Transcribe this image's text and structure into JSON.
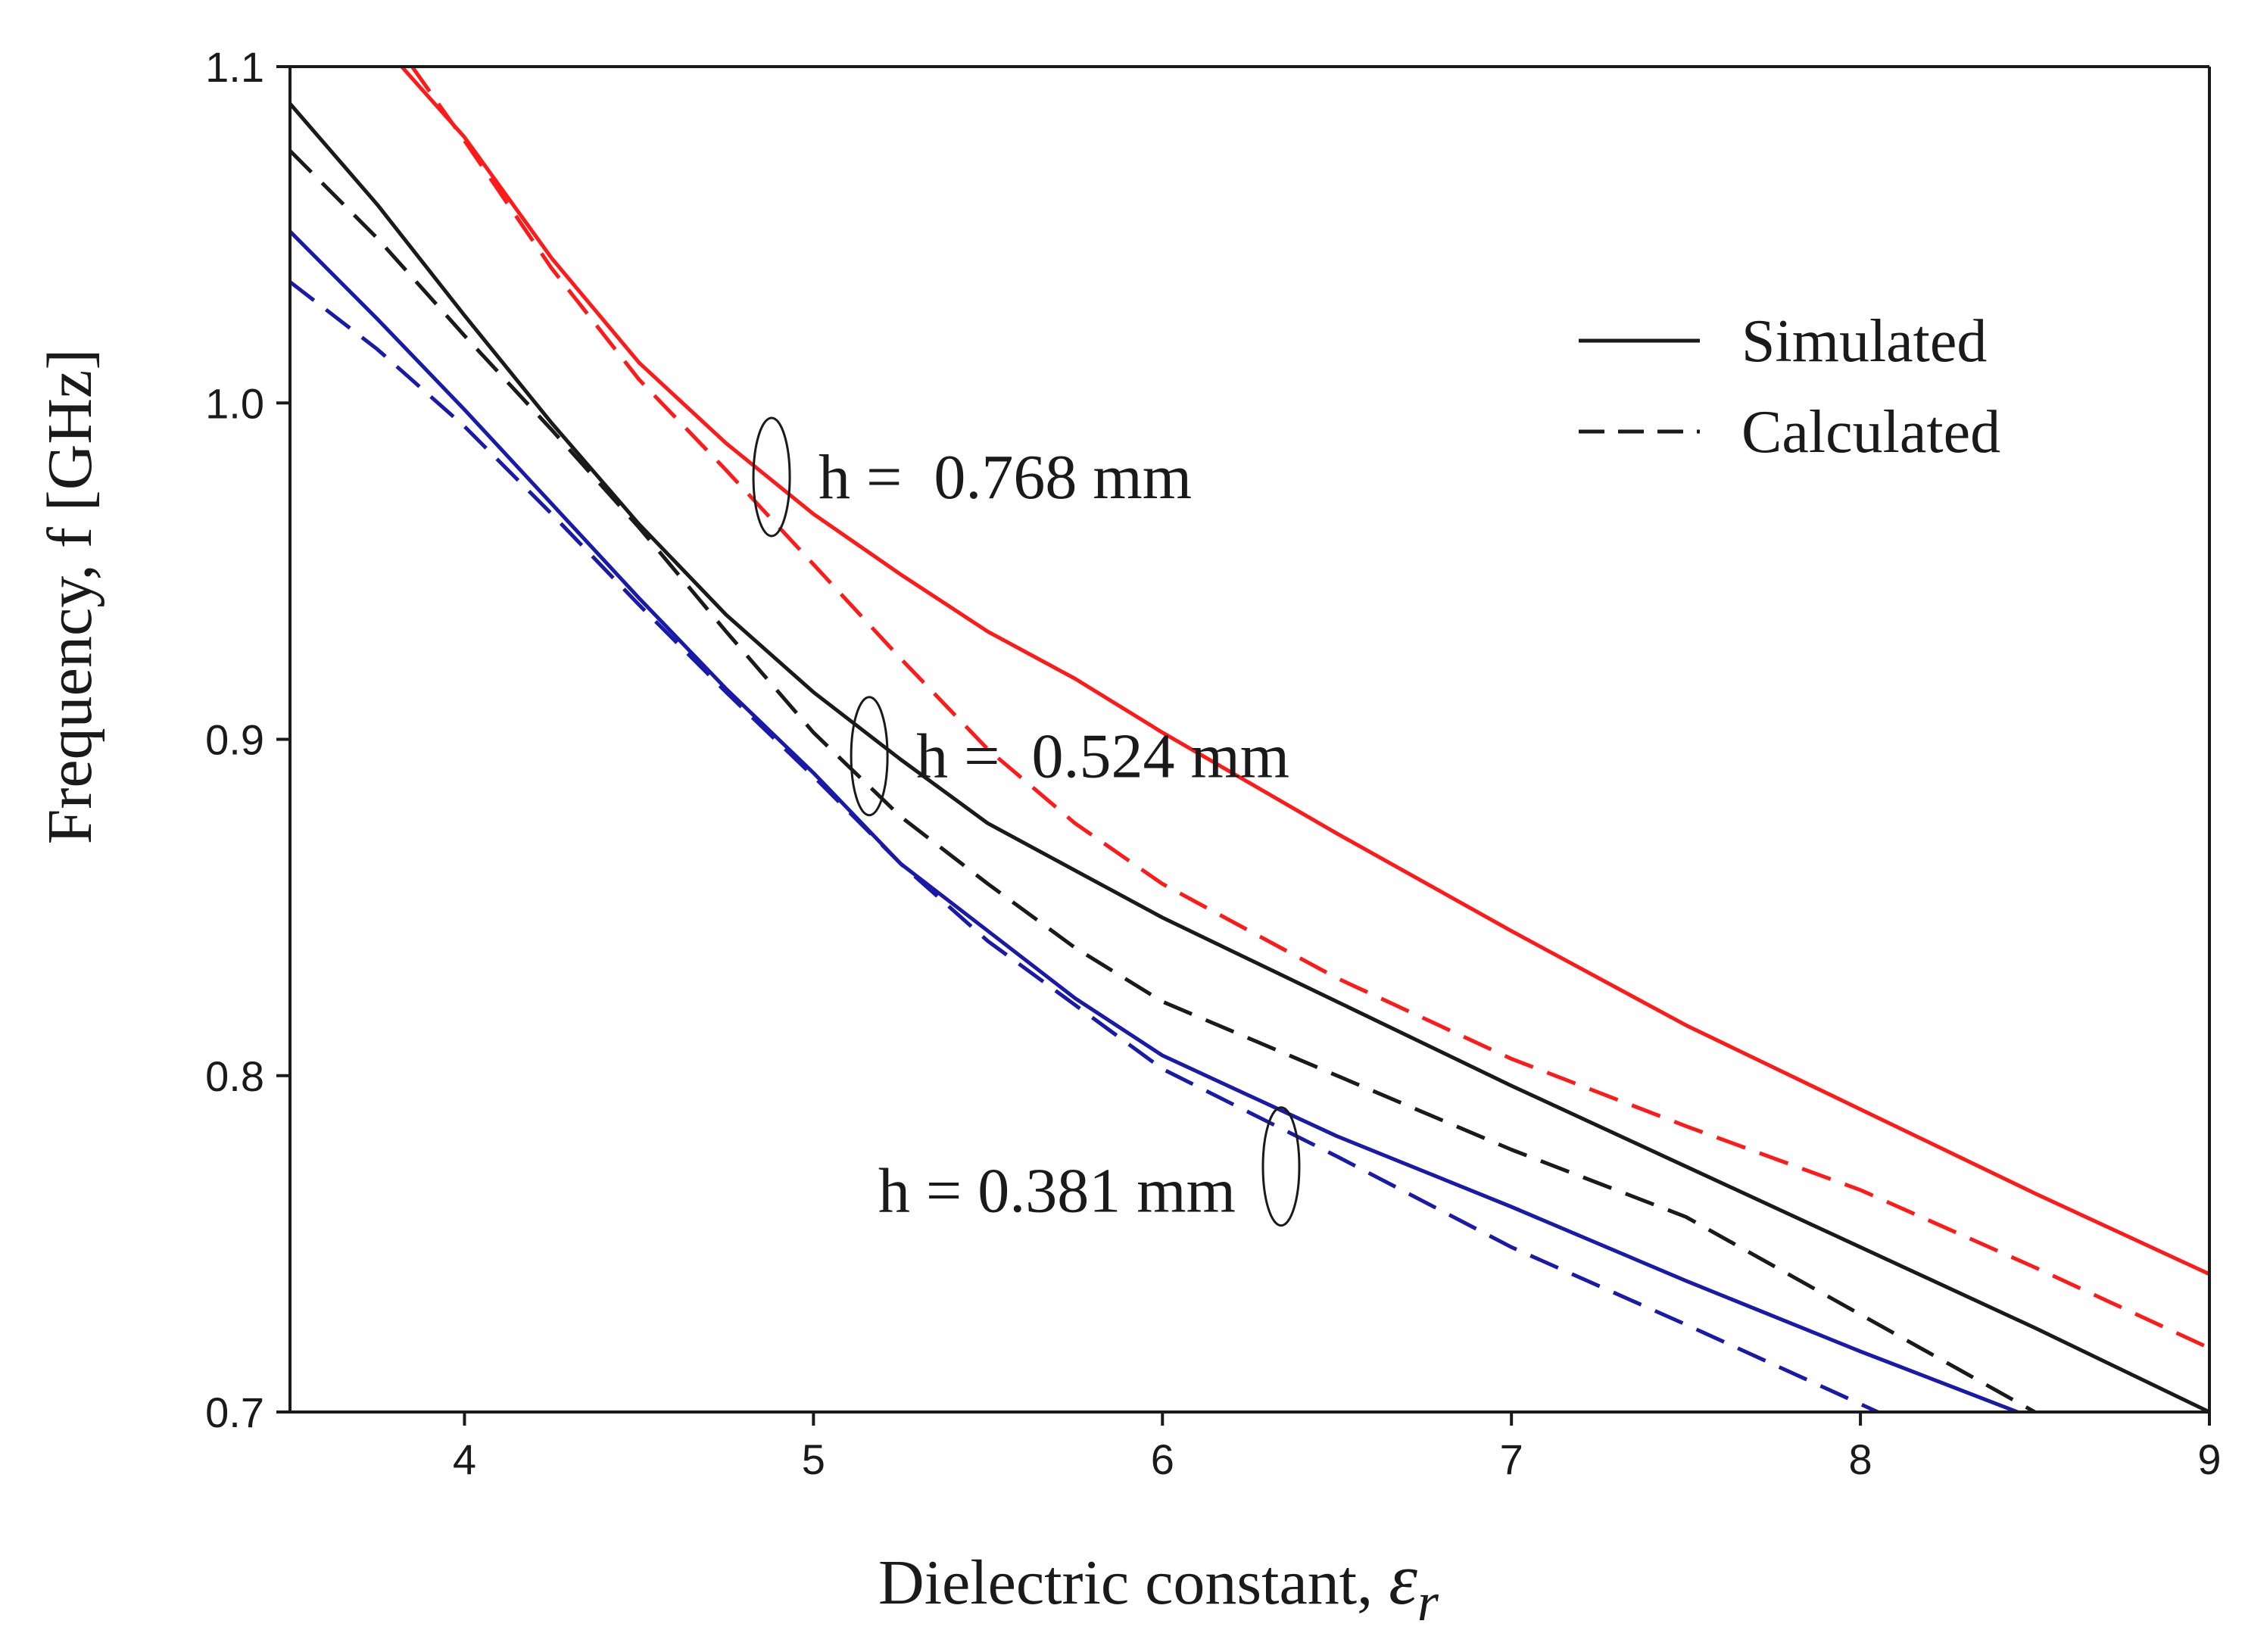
{
  "chart_data": {
    "type": "line",
    "title": "",
    "xlabel": "Dielectric constant, ",
    "xlabel_symbol": "ε",
    "xlabel_subscript": "r",
    "ylabel": "Frequency, f [GHz]",
    "xlim": [
      3.5,
      9
    ],
    "ylim": [
      0.7,
      1.1
    ],
    "xticks": [
      4,
      5,
      6,
      7,
      8,
      9
    ],
    "xtick_labels": [
      "4",
      "5",
      "6",
      "7",
      "8",
      "9"
    ],
    "yticks": [
      0.7,
      0.8,
      0.9,
      1.0,
      1.1
    ],
    "ytick_labels": [
      "0.7",
      "0.8",
      "0.9",
      "1.0",
      "1.1"
    ],
    "grid": false,
    "legend": {
      "position": "top-right",
      "entries": [
        {
          "label": "Simulated",
          "style": "solid"
        },
        {
          "label": "Calculated",
          "style": "dashed"
        }
      ]
    },
    "annotations": [
      {
        "text": "h =  0.768 mm",
        "x": 4.88,
        "y": 0.978
      },
      {
        "text": "h =  0.524 mm",
        "x": 5.16,
        "y": 0.895
      },
      {
        "text": "h = 0.381 mm",
        "x": 6.34,
        "y": 0.773
      }
    ],
    "series": [
      {
        "name": "Simulated h = 0.768 mm",
        "color": "#ff1a1a",
        "style": "solid",
        "x": [
          3.82,
          4.0,
          4.25,
          4.5,
          4.75,
          5.0,
          5.25,
          5.5,
          5.75,
          6.0,
          6.5,
          7.0,
          7.5,
          8.0,
          8.5,
          9.0
        ],
        "y": [
          1.1,
          1.079,
          1.043,
          1.012,
          0.988,
          0.967,
          0.949,
          0.932,
          0.918,
          0.902,
          0.872,
          0.843,
          0.815,
          0.79,
          0.765,
          0.741
        ]
      },
      {
        "name": "Calculated h = 0.768 mm",
        "color": "#ff1a1a",
        "style": "dashed",
        "x": [
          3.85,
          4.0,
          4.25,
          4.5,
          4.75,
          5.0,
          5.25,
          5.5,
          5.75,
          6.0,
          6.5,
          7.0,
          7.5,
          8.0,
          8.5,
          9.0
        ],
        "y": [
          1.1,
          1.078,
          1.04,
          1.007,
          0.98,
          0.952,
          0.924,
          0.897,
          0.875,
          0.857,
          0.829,
          0.805,
          0.785,
          0.766,
          0.743,
          0.719
        ]
      },
      {
        "name": "Simulated h = 0.524 mm",
        "color": "#1a1a1a",
        "style": "solid",
        "x": [
          3.5,
          3.75,
          4.0,
          4.25,
          4.5,
          4.75,
          5.0,
          5.25,
          5.5,
          5.75,
          6.0,
          6.5,
          7.0,
          7.5,
          8.0,
          8.5,
          9.0
        ],
        "y": [
          1.089,
          1.059,
          1.026,
          0.994,
          0.964,
          0.937,
          0.914,
          0.894,
          0.875,
          0.861,
          0.847,
          0.822,
          0.797,
          0.773,
          0.749,
          0.725,
          0.7
        ]
      },
      {
        "name": "Calculated h = 0.524 mm",
        "color": "#1a1a1a",
        "style": "dashed",
        "x": [
          3.5,
          3.75,
          4.0,
          4.25,
          4.5,
          4.75,
          5.0,
          5.25,
          5.5,
          5.75,
          6.0,
          6.5,
          7.0,
          7.5,
          8.0,
          8.5
        ],
        "y": [
          1.075,
          1.049,
          1.02,
          0.992,
          0.963,
          0.932,
          0.902,
          0.877,
          0.857,
          0.838,
          0.822,
          0.8,
          0.778,
          0.758,
          0.729,
          0.7
        ]
      },
      {
        "name": "Simulated h = 0.381 mm",
        "color": "#1a1aa8",
        "style": "solid",
        "x": [
          3.5,
          3.75,
          4.0,
          4.25,
          4.5,
          4.75,
          5.0,
          5.25,
          5.5,
          5.75,
          6.0,
          6.5,
          7.0,
          7.5,
          8.0,
          8.45
        ],
        "y": [
          1.051,
          1.025,
          0.998,
          0.97,
          0.942,
          0.915,
          0.89,
          0.863,
          0.843,
          0.823,
          0.806,
          0.782,
          0.761,
          0.739,
          0.718,
          0.7
        ]
      },
      {
        "name": "Calculated h = 0.381 mm",
        "color": "#1a1aa8",
        "style": "dashed",
        "x": [
          3.5,
          3.75,
          4.0,
          4.25,
          4.5,
          4.75,
          5.0,
          5.25,
          5.5,
          5.75,
          6.0,
          6.5,
          7.0,
          7.5,
          8.05
        ],
        "y": [
          1.036,
          1.016,
          0.993,
          0.967,
          0.94,
          0.914,
          0.889,
          0.863,
          0.84,
          0.821,
          0.802,
          0.776,
          0.749,
          0.726,
          0.7
        ]
      }
    ]
  }
}
